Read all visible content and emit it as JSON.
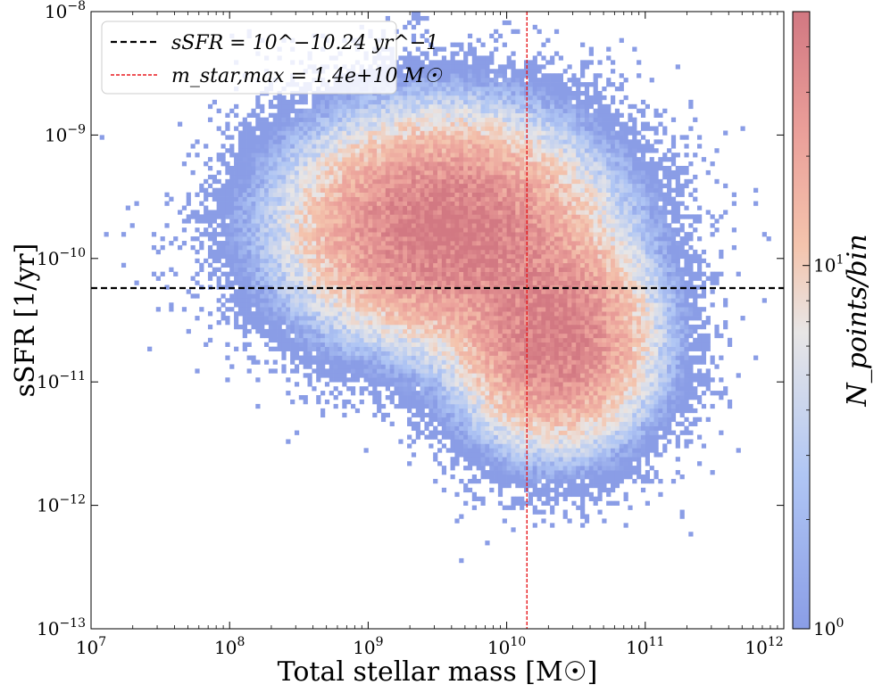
{
  "chart_data": {
    "type": "heatmap",
    "subtype": "2d-histogram",
    "xlabel": "Total stellar mass [M☉]",
    "ylabel": "sSFR [1/yr]",
    "xscale": "log",
    "yscale": "log",
    "xlim": [
      10000000.0,
      1000000000000.0
    ],
    "ylim": [
      1e-13,
      1e-08
    ],
    "x_ticks": [
      {
        "value": 10000000.0,
        "base": "10",
        "exp": "7"
      },
      {
        "value": 100000000.0,
        "base": "10",
        "exp": "8"
      },
      {
        "value": 1000000000.0,
        "base": "10",
        "exp": "9"
      },
      {
        "value": 10000000000.0,
        "base": "10",
        "exp": "10"
      },
      {
        "value": 100000000000.0,
        "base": "10",
        "exp": "11"
      },
      {
        "value": 1000000000000.0,
        "base": "10",
        "exp": "12"
      }
    ],
    "y_ticks": [
      {
        "value": 1e-13,
        "base": "10",
        "exp": "−13"
      },
      {
        "value": 1e-12,
        "base": "10",
        "exp": "−12"
      },
      {
        "value": 1e-11,
        "base": "10",
        "exp": "−11"
      },
      {
        "value": 1e-10,
        "base": "10",
        "exp": "−10"
      },
      {
        "value": 1e-09,
        "base": "10",
        "exp": "−9"
      },
      {
        "value": 1e-08,
        "base": "10",
        "exp": "−8"
      }
    ],
    "colorbar": {
      "label": "N_points/bin",
      "scale": "log",
      "range": [
        1,
        50
      ],
      "colormap": "coolwarm",
      "ticks": [
        {
          "value": 1,
          "base": "10",
          "exp": "0"
        },
        {
          "value": 10,
          "base": "10",
          "exp": "1"
        }
      ]
    },
    "reference_lines": [
      {
        "orientation": "horizontal",
        "value": 5.754e-11,
        "style": "dashed",
        "color": "#000000"
      },
      {
        "orientation": "vertical",
        "value": 14000000000.0,
        "style": "dashed",
        "color": "#e8191e"
      }
    ],
    "legend": {
      "position": "top-left",
      "entries": [
        {
          "text": "sSFR = 10^−10.24 yr^−1",
          "line_color": "#000000",
          "style": "dashed"
        },
        {
          "text": "m_star,max = 1.4e+10 M☉",
          "line_color": "#e8191e",
          "style": "dashed"
        }
      ]
    },
    "density_model": {
      "components": [
        {
          "log_x": 9.55,
          "log_y": -9.75,
          "sigma_x": 0.55,
          "sigma_y": 0.45,
          "weight": 1.0
        },
        {
          "log_x": 10.35,
          "log_y": -10.65,
          "sigma_x": 0.35,
          "sigma_y": 0.42,
          "weight": 0.9
        }
      ],
      "peak_count": 50,
      "bins_x": 160,
      "bins_y": 140
    },
    "grid": false
  },
  "colors": {
    "low": "#8b9bd9",
    "mid": "#ddddde",
    "high": "#d06d78"
  }
}
